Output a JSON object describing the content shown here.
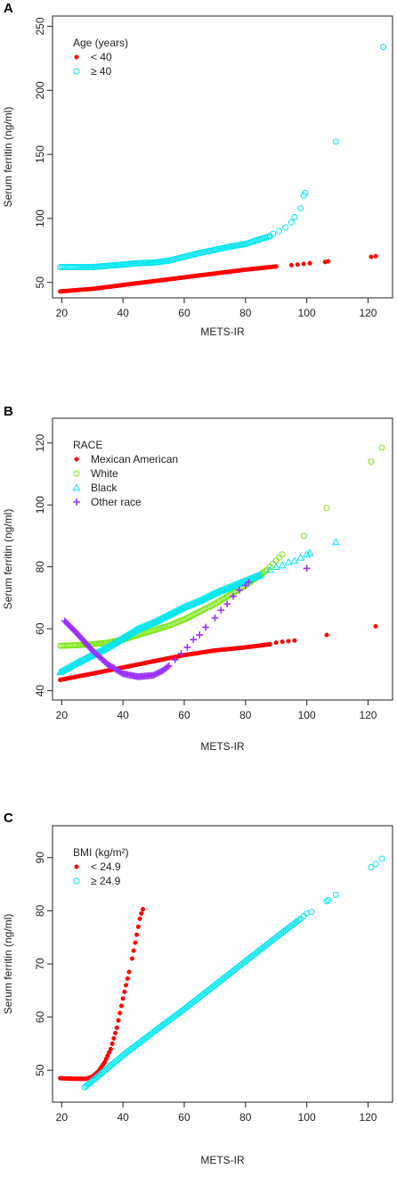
{
  "chart_data": [
    {
      "panel": "A",
      "type": "scatter",
      "title": "",
      "xlabel": "METS-IR",
      "ylabel": "Serum ferritin (ng/ml)",
      "xlim": [
        17,
        128
      ],
      "ylim": [
        38,
        258
      ],
      "xticks": [
        20,
        40,
        60,
        80,
        100,
        120
      ],
      "yticks": [
        50,
        100,
        150,
        200,
        250
      ],
      "legend": {
        "title": "Age (years)",
        "placement": "top-left"
      },
      "series": [
        {
          "name": "< 40",
          "color": "#ff0000",
          "marker": "filled-circle",
          "curve": [
            [
              19.5,
              43
            ],
            [
              30,
              45
            ],
            [
              40,
              48
            ],
            [
              50,
              51
            ],
            [
              60,
              54
            ],
            [
              70,
              57
            ],
            [
              80,
              60
            ],
            [
              90,
              62.5
            ]
          ],
          "extra": [
            [
              95,
              63.5
            ],
            [
              97,
              64
            ],
            [
              99,
              64.5
            ],
            [
              101,
              65
            ],
            [
              106,
              66
            ],
            [
              107,
              66.5
            ],
            [
              121,
              70
            ],
            [
              122.5,
              70.5
            ]
          ]
        },
        {
          "name": "≥ 40",
          "color": "#00e5ee",
          "marker": "open-circle",
          "curve": [
            [
              19.5,
              62
            ],
            [
              25,
              62
            ],
            [
              30,
              62
            ],
            [
              35,
              63
            ],
            [
              40,
              64
            ],
            [
              45,
              65
            ],
            [
              50,
              65.5
            ],
            [
              55,
              67
            ],
            [
              60,
              70
            ],
            [
              65,
              73
            ],
            [
              70,
              75.5
            ],
            [
              75,
              78
            ],
            [
              80,
              80
            ],
            [
              85,
              84
            ],
            [
              88,
              86
            ]
          ],
          "extra": [
            [
              89,
              88
            ],
            [
              91,
              90
            ],
            [
              93,
              93
            ],
            [
              95,
              97
            ],
            [
              96,
              101
            ],
            [
              98,
              108
            ],
            [
              99,
              118
            ],
            [
              99.5,
              120
            ],
            [
              109.5,
              160
            ],
            [
              125,
              234
            ]
          ]
        }
      ]
    },
    {
      "panel": "B",
      "type": "scatter",
      "title": "",
      "xlabel": "METS-IR",
      "ylabel": "Serum ferritin (ng/ml)",
      "xlim": [
        17,
        128
      ],
      "ylim": [
        37,
        128
      ],
      "xticks": [
        20,
        40,
        60,
        80,
        100,
        120
      ],
      "yticks": [
        40,
        60,
        80,
        100,
        120
      ],
      "legend": {
        "title": "RACE",
        "placement": "top-left"
      },
      "series": [
        {
          "name": "Mexican American",
          "color": "#ff0000",
          "marker": "filled-circle",
          "curve": [
            [
              19.5,
              43.5
            ],
            [
              30,
              45.5
            ],
            [
              40,
              47.5
            ],
            [
              50,
              49.5
            ],
            [
              60,
              51.5
            ],
            [
              70,
              53
            ],
            [
              80,
              54
            ],
            [
              88,
              55
            ]
          ],
          "extra": [
            [
              90,
              55.5
            ],
            [
              92,
              55.8
            ],
            [
              94,
              56
            ],
            [
              96,
              56.2
            ],
            [
              106.5,
              58
            ],
            [
              122.5,
              60.8
            ]
          ]
        },
        {
          "name": "White",
          "color": "#7fe51a",
          "marker": "open-circle",
          "curve": [
            [
              19.5,
              54.5
            ],
            [
              25,
              54.7
            ],
            [
              30,
              55
            ],
            [
              35,
              55.5
            ],
            [
              40,
              56.5
            ],
            [
              45,
              58
            ],
            [
              50,
              59.5
            ],
            [
              55,
              61
            ],
            [
              60,
              63
            ],
            [
              65,
              65.5
            ],
            [
              70,
              68
            ],
            [
              75,
              71
            ],
            [
              80,
              74
            ],
            [
              85,
              77.5
            ],
            [
              87,
              79
            ]
          ],
          "extra": [
            [
              88,
              80
            ],
            [
              89,
              81
            ],
            [
              90,
              82
            ],
            [
              91,
              83
            ],
            [
              92,
              84
            ],
            [
              99,
              90
            ],
            [
              106.5,
              99
            ],
            [
              121,
              114
            ],
            [
              124.5,
              118.5
            ]
          ]
        },
        {
          "name": "Black",
          "color": "#00e5ee",
          "marker": "open-triangle",
          "curve": [
            [
              19.5,
              46
            ],
            [
              25,
              49
            ],
            [
              30,
              51.5
            ],
            [
              35,
              54
            ],
            [
              40,
              57
            ],
            [
              45,
              60
            ],
            [
              50,
              62
            ],
            [
              55,
              64.5
            ],
            [
              60,
              67
            ],
            [
              65,
              69
            ],
            [
              70,
              71.5
            ],
            [
              75,
              73.5
            ],
            [
              80,
              75.5
            ],
            [
              85,
              77.5
            ]
          ],
          "extra": [
            [
              88,
              79
            ],
            [
              90,
              80
            ],
            [
              92,
              80.5
            ],
            [
              94,
              81.5
            ],
            [
              96,
              82
            ],
            [
              98,
              83
            ],
            [
              100,
              84
            ],
            [
              101,
              84.5
            ],
            [
              109.5,
              88
            ]
          ]
        },
        {
          "name": "Other race",
          "color": "#9b30ff",
          "marker": "plus",
          "curve": [
            [
              21,
              62.5
            ],
            [
              25,
              58.5
            ],
            [
              30,
              53
            ],
            [
              35,
              48.5
            ],
            [
              40,
              45.5
            ],
            [
              45,
              44.5
            ],
            [
              50,
              45
            ],
            [
              53,
              46.5
            ],
            [
              55,
              48
            ]
          ],
          "extra": [
            [
              57,
              50
            ],
            [
              59,
              52
            ],
            [
              61,
              54
            ],
            [
              63,
              56.5
            ],
            [
              65,
              58
            ],
            [
              67,
              60.5
            ],
            [
              70,
              63.5
            ],
            [
              72,
              66
            ],
            [
              74,
              68
            ],
            [
              76,
              70.5
            ],
            [
              78,
              72.5
            ],
            [
              80,
              74
            ],
            [
              81,
              75
            ],
            [
              100,
              79.5
            ]
          ]
        }
      ]
    },
    {
      "panel": "C",
      "type": "scatter",
      "title": "",
      "xlabel": "METS-IR",
      "ylabel": "Serum ferritin (ng/ml)",
      "xlim": [
        17,
        128
      ],
      "ylim": [
        44,
        96
      ],
      "xticks": [
        20,
        40,
        60,
        80,
        100,
        120
      ],
      "yticks": [
        50,
        60,
        70,
        80,
        90
      ],
      "legend": {
        "title": "BMI (kg/m²)",
        "placement": "top-left"
      },
      "series": [
        {
          "name": "< 24.9",
          "color": "#ff0000",
          "marker": "filled-circle",
          "curve": [
            [
              19.5,
              48.5
            ],
            [
              24,
              48.4
            ],
            [
              28,
              48.4
            ],
            [
              30,
              48.8
            ],
            [
              32,
              49.8
            ],
            [
              34,
              51.5
            ],
            [
              36,
              54
            ],
            [
              38,
              58
            ],
            [
              40,
              63.5
            ],
            [
              42,
              68.5
            ]
          ],
          "extra": [
            [
              43,
              71
            ],
            [
              43.5,
              72.5
            ],
            [
              44,
              74
            ],
            [
              44.5,
              75.5
            ],
            [
              45,
              77
            ],
            [
              45.5,
              78.5
            ],
            [
              46,
              79.5
            ],
            [
              46.5,
              80.3
            ]
          ]
        },
        {
          "name": "≥ 24.9",
          "color": "#00e5ee",
          "marker": "open-circle",
          "curve": [
            [
              27.5,
              46.8
            ],
            [
              30,
              48
            ],
            [
              40,
              52.8
            ],
            [
              50,
              57.2
            ],
            [
              60,
              61.5
            ],
            [
              70,
              66
            ],
            [
              80,
              70.5
            ],
            [
              90,
              75
            ],
            [
              98,
              78.5
            ]
          ],
          "extra": [
            [
              99,
              79
            ],
            [
              100,
              79.5
            ],
            [
              101.5,
              79.8
            ],
            [
              106.5,
              81.8
            ],
            [
              107,
              82
            ],
            [
              109.5,
              83
            ],
            [
              121,
              88.2
            ],
            [
              122.5,
              88.8
            ],
            [
              124.5,
              89.8
            ]
          ]
        }
      ]
    }
  ]
}
